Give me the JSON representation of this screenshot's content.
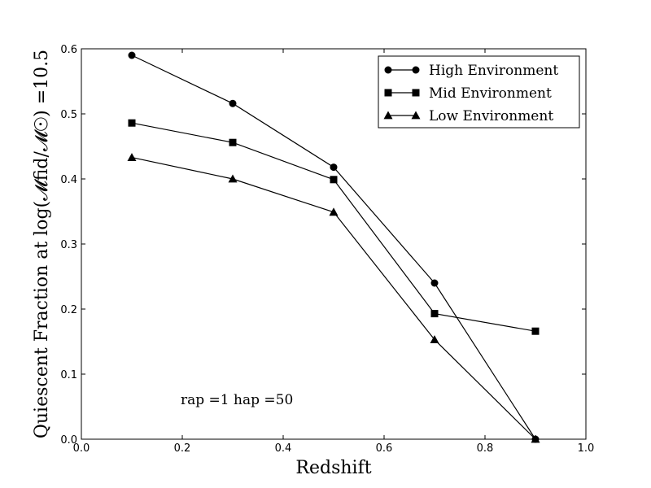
{
  "chart_data": {
    "type": "line",
    "xlabel": "Redshift",
    "ylabel": "Quiescent Fraction at log(𝓜fid/𝓜☉) =10.5",
    "xlim": [
      0.0,
      1.0
    ],
    "ylim": [
      0.0,
      0.6
    ],
    "xticks": [
      "0.0",
      "0.2",
      "0.4",
      "0.6",
      "0.8",
      "1.0"
    ],
    "yticks": [
      "0.0",
      "0.1",
      "0.2",
      "0.3",
      "0.4",
      "0.5",
      "0.6"
    ],
    "grid": false,
    "legend_position": "top-right",
    "annotation": "rap =1 hap =50",
    "x": [
      0.1,
      0.3,
      0.5,
      0.7,
      0.9
    ],
    "series": [
      {
        "name": "High Environment",
        "marker": "circle",
        "values": [
          0.59,
          0.516,
          0.418,
          0.24,
          0.0
        ]
      },
      {
        "name": "Mid Environment",
        "marker": "square",
        "values": [
          0.486,
          0.456,
          0.399,
          0.193,
          0.166
        ]
      },
      {
        "name": "Low Environment",
        "marker": "triangle",
        "values": [
          0.433,
          0.4,
          0.349,
          0.153,
          0.0
        ]
      }
    ],
    "color": "#000000"
  }
}
